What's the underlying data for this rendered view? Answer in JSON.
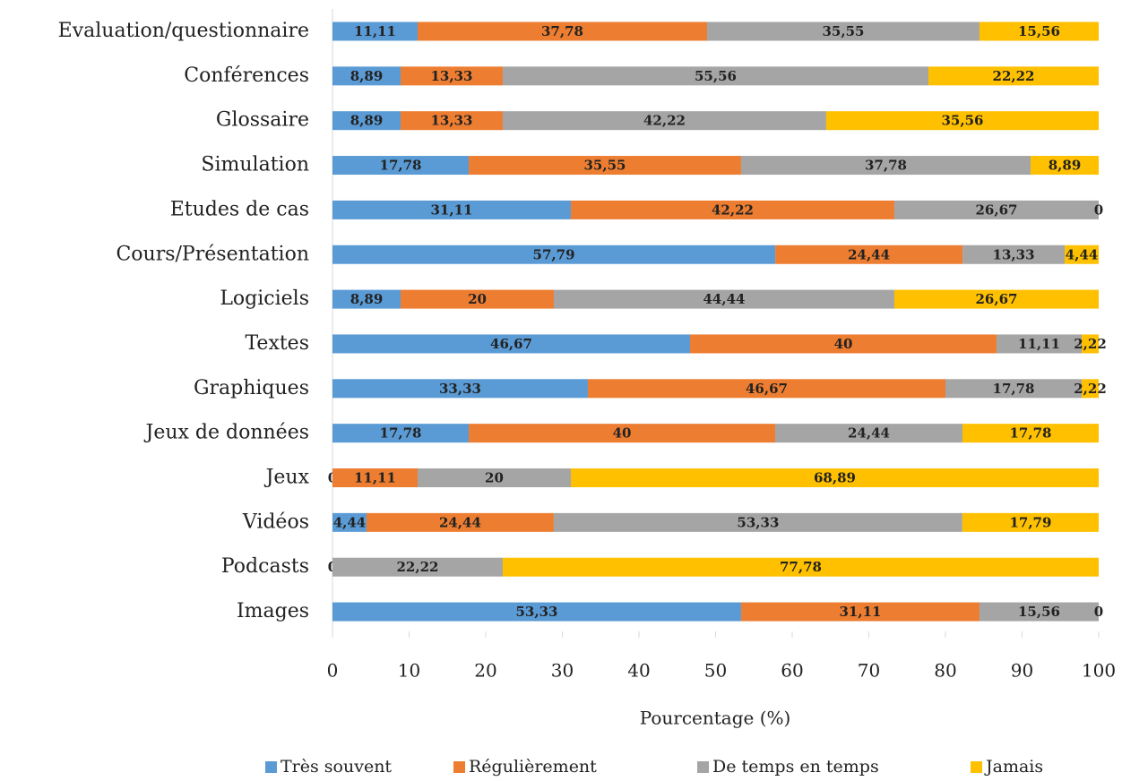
{
  "chart_data": {
    "type": "stacked-barh",
    "categories": [
      "Evaluation/questionnaire",
      "Conférences",
      "Glossaire",
      "Simulation",
      "Etudes de cas",
      "Cours/Présentation",
      "Logiciels",
      "Textes",
      "Graphiques",
      "Jeux de données",
      "Jeux",
      "Vidéos",
      "Podcasts",
      "Images"
    ],
    "series": [
      {
        "name": "Très souvent",
        "color": "#5b9bd5",
        "values": [
          11.11,
          8.89,
          8.89,
          17.78,
          31.11,
          57.79,
          8.89,
          46.67,
          33.33,
          17.78,
          0,
          4.44,
          0,
          53.33
        ],
        "value_labels": [
          "11,11",
          "8,89",
          "8,89",
          "17,78",
          "31,11",
          "57,79",
          "8,89",
          "46,67",
          "33,33",
          "17,78",
          "0",
          "4,44",
          "0",
          "53,33"
        ]
      },
      {
        "name": "Régulièrement",
        "color": "#ed7d31",
        "values": [
          37.78,
          13.33,
          13.33,
          35.55,
          42.22,
          24.44,
          20,
          40,
          46.67,
          40,
          11.11,
          24.44,
          0,
          31.11
        ],
        "value_labels": [
          "37,78",
          "13,33",
          "13,33",
          "35,55",
          "42,22",
          "24,44",
          "20",
          "40",
          "46,67",
          "40",
          "11,11",
          "24,44",
          "0",
          "31,11"
        ]
      },
      {
        "name": "De temps en temps",
        "color": "#a5a5a5",
        "values": [
          35.55,
          55.56,
          42.22,
          37.78,
          26.67,
          13.33,
          44.44,
          11.11,
          17.78,
          24.44,
          20,
          53.33,
          22.22,
          15.56
        ],
        "value_labels": [
          "35,55",
          "55,56",
          "42,22",
          "37,78",
          "26,67",
          "13,33",
          "44,44",
          "11,11",
          "17,78",
          "24,44",
          "20",
          "53,33",
          "22,22",
          "15,56"
        ]
      },
      {
        "name": "Jamais",
        "color": "#ffc000",
        "values": [
          15.56,
          22.22,
          35.56,
          8.89,
          0,
          4.44,
          26.67,
          2.22,
          2.22,
          17.78,
          68.89,
          17.79,
          77.78,
          0
        ],
        "value_labels": [
          "15,56",
          "22,22",
          "35,56",
          "8,89",
          "0",
          "4,44",
          "26,67",
          "2,22",
          "2,22",
          "17,78",
          "68,89",
          "17,79",
          "77,78",
          "0"
        ]
      }
    ],
    "xlabel": "Pourcentage (%)",
    "xlim": [
      0,
      100
    ],
    "xticks": [
      0,
      10,
      20,
      30,
      40,
      50,
      60,
      70,
      80,
      90,
      100
    ],
    "legend": "bottom"
  }
}
